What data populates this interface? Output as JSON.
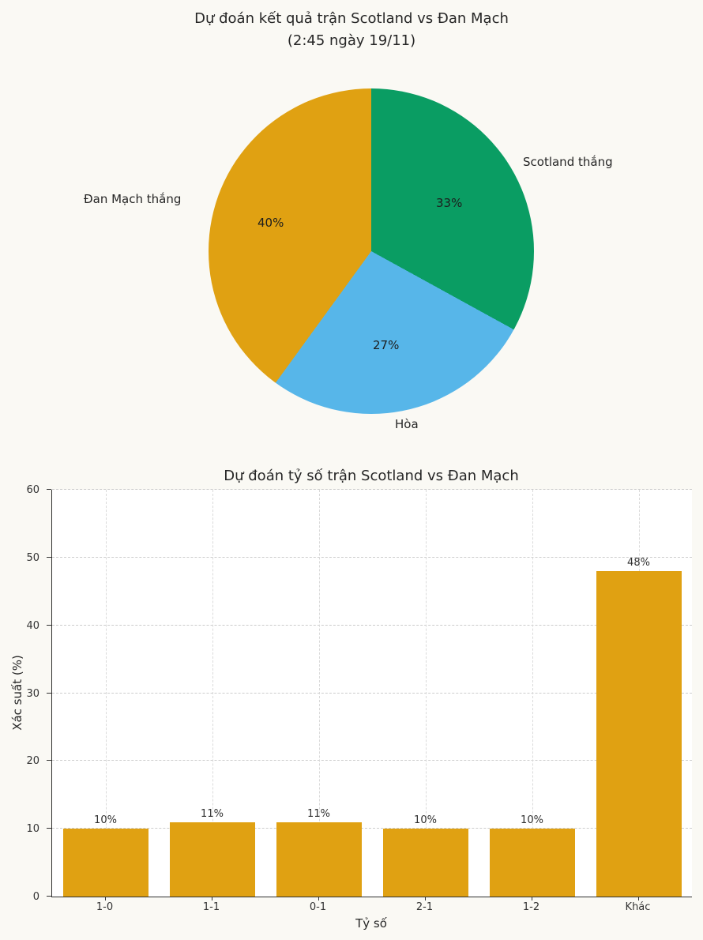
{
  "page": {
    "background": "#faf9f4"
  },
  "chart_data": [
    {
      "type": "pie",
      "title": "Dự đoán kết quả trận Scotland vs Đan Mạch (2:45 ngày 19/11)",
      "title_line1": "Dự đoán kết quả trận Scotland vs Đan Mạch",
      "title_line2": "(2:45 ngày 19/11)",
      "labels": [
        "Scotland thắng",
        "Hòa",
        "Đan Mạch thắng"
      ],
      "values": [
        33,
        27,
        40
      ],
      "percent_labels": [
        "33%",
        "27%",
        "40%"
      ],
      "colors": [
        "#0a9d63",
        "#57b6e9",
        "#e0a112"
      ],
      "start_angle": "top",
      "direction": "clockwise",
      "legend": "none"
    },
    {
      "type": "bar",
      "title": "Dự đoán tỷ số trận Scotland vs Đan Mạch",
      "categories": [
        "1-0",
        "1-1",
        "0-1",
        "2-1",
        "1-2",
        "Khác"
      ],
      "values": [
        10,
        11,
        11,
        10,
        10,
        48
      ],
      "bar_labels": [
        "10%",
        "11%",
        "11%",
        "10%",
        "10%",
        "48%"
      ],
      "xlabel": "Tỷ số",
      "ylabel": "Xác suất (%)",
      "ylim": [
        0,
        60
      ],
      "yticks": [
        0,
        10,
        20,
        30,
        40,
        50,
        60
      ],
      "bar_color": "#e0a112",
      "grid": "dashed-both-axes",
      "legend": "none"
    }
  ]
}
